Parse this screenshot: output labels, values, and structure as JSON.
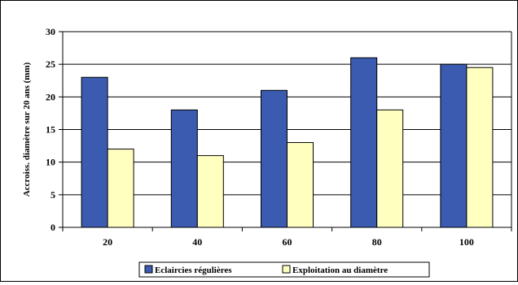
{
  "chart_data": {
    "type": "bar",
    "categories": [
      "20",
      "40",
      "60",
      "80",
      "100"
    ],
    "series": [
      {
        "name": "Eclaircies régulières",
        "values": [
          23,
          18,
          21,
          26,
          25
        ],
        "color": "#3A5BAF"
      },
      {
        "name": "Exploitation au diamètre",
        "values": [
          12,
          11,
          13,
          18,
          24.5
        ],
        "color": "#FFFFC0"
      }
    ],
    "title": "",
    "xlabel": "",
    "ylabel": "Accroiss. diamètre sur 20 ans (mm)",
    "ylim": [
      0,
      30
    ],
    "yticks": [
      0,
      5,
      10,
      15,
      20,
      25,
      30
    ],
    "grid": true,
    "legend_position": "bottom",
    "colors": {
      "plot_background": "#FFFFFF",
      "gridline": "#000000",
      "bar_outline": "#000000"
    }
  }
}
